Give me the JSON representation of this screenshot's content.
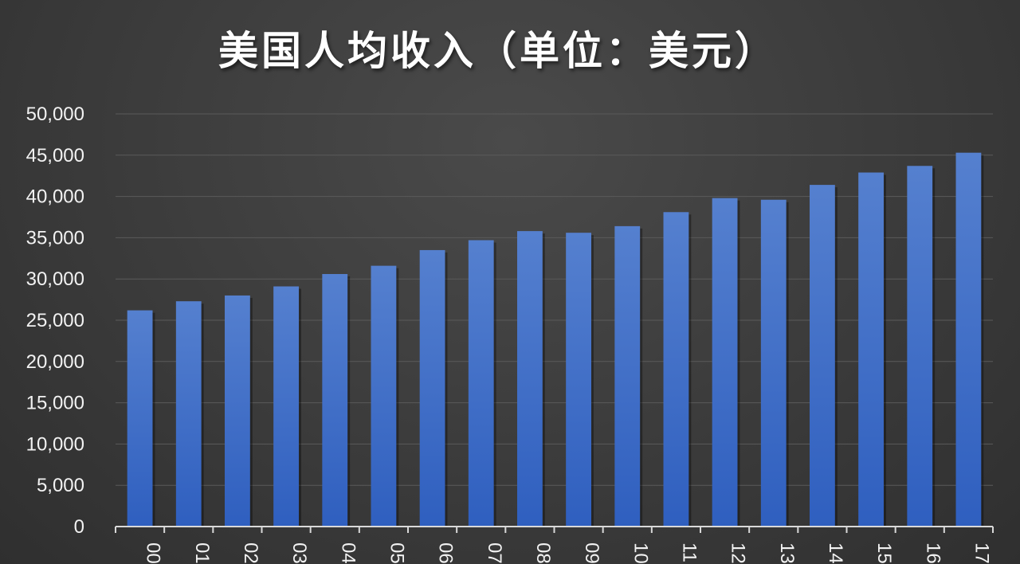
{
  "chart_data": {
    "type": "bar",
    "title": "美国人均收入（单位：美元）",
    "categories": [
      "2000",
      "2001",
      "2002",
      "2003",
      "2004",
      "2005",
      "2006",
      "2007",
      "2008",
      "2009",
      "2010",
      "2011",
      "2012",
      "2013",
      "2014",
      "2015",
      "2016",
      "2017"
    ],
    "tick_labels": [
      "00",
      "01",
      "02",
      "03",
      "04",
      "05",
      "06",
      "07",
      "08",
      "09",
      "10",
      "11",
      "12",
      "13",
      "14",
      "15",
      "16",
      "17"
    ],
    "values": [
      26200,
      27300,
      28000,
      29100,
      30600,
      31600,
      33500,
      34700,
      35800,
      35600,
      36400,
      38100,
      39800,
      39600,
      41400,
      42900,
      43700,
      45300
    ],
    "ylim": [
      0,
      50000
    ],
    "yticks": [
      "0",
      "5,000",
      "10,000",
      "15,000",
      "20,000",
      "25,000",
      "30,000",
      "35,000",
      "40,000",
      "45,000",
      "50,000"
    ],
    "grid": true,
    "bar_color": "#4472c4"
  }
}
